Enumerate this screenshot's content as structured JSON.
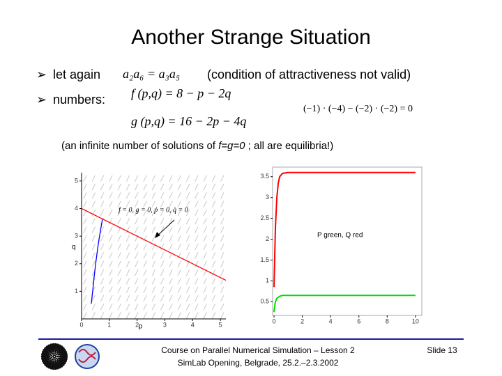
{
  "title": "Another Strange Situation",
  "bullets": [
    {
      "text": "let again",
      "formula": "a₂a₆ = a₃a₅",
      "note": "(condition of attractiveness not valid)"
    },
    {
      "text": "numbers:",
      "formulas": [
        "f (p,q) = 8 − p − 2q",
        "g (p,q) = 16 − 2p − 4q"
      ]
    }
  ],
  "side_formula": "(−1) · (−4) − (−2) · (−2) = 0",
  "remark": [
    "(an infinite number of solutions of ",
    "f=g=0",
    " ; all are equilibria!)"
  ],
  "plots": [
    {
      "type": "direction-field",
      "xlabel": "p",
      "ylabel": "q",
      "xlim": [
        0,
        5.2
      ],
      "ylim": [
        0,
        5.3
      ],
      "xticks": [
        0,
        1,
        2,
        3,
        4,
        5
      ],
      "yticks": [
        1,
        2,
        3,
        4,
        5
      ],
      "annotation": "f = 0, g = 0, ṗ = 0, q̇ = 0",
      "lines": [
        {
          "color": "#ff0000",
          "x": [
            0,
            5.2
          ],
          "y": [
            4,
            1.4
          ]
        },
        {
          "color": "#0000ff",
          "x": [
            0.35,
            0.4,
            0.45,
            0.52,
            0.6,
            0.68,
            0.75
          ],
          "y": [
            0.55,
            1.0,
            1.5,
            2.1,
            2.7,
            3.2,
            3.6
          ]
        }
      ]
    },
    {
      "type": "line",
      "annotation": "P green, Q red",
      "xlim": [
        -0.1,
        10.45
      ],
      "ylim": [
        0.17,
        3.73
      ],
      "xticks": [
        0,
        2,
        4,
        6,
        8,
        10
      ],
      "yticks": [
        0.5,
        1,
        1.5,
        2,
        2.5,
        3,
        3.5
      ],
      "lines": [
        {
          "color": "#ff0000",
          "x": [
            0,
            0.05,
            0.1,
            0.2,
            0.3,
            0.4,
            0.6,
            1,
            10
          ],
          "y": [
            0.85,
            1.6,
            2.3,
            3.0,
            3.35,
            3.5,
            3.58,
            3.6,
            3.6
          ]
        },
        {
          "color": "#00dd00",
          "x": [
            0,
            0.05,
            0.1,
            0.2,
            0.4,
            0.6,
            1,
            10
          ],
          "y": [
            0.25,
            0.4,
            0.5,
            0.58,
            0.63,
            0.65,
            0.65,
            0.65
          ]
        }
      ]
    }
  ],
  "footer": {
    "lines": [
      "Course on Parallel Numerical Simulation – Lesson 2",
      "SimLab Opening, Belgrade, 25.2.–2.3.2002"
    ],
    "slide": "Slide 13"
  }
}
